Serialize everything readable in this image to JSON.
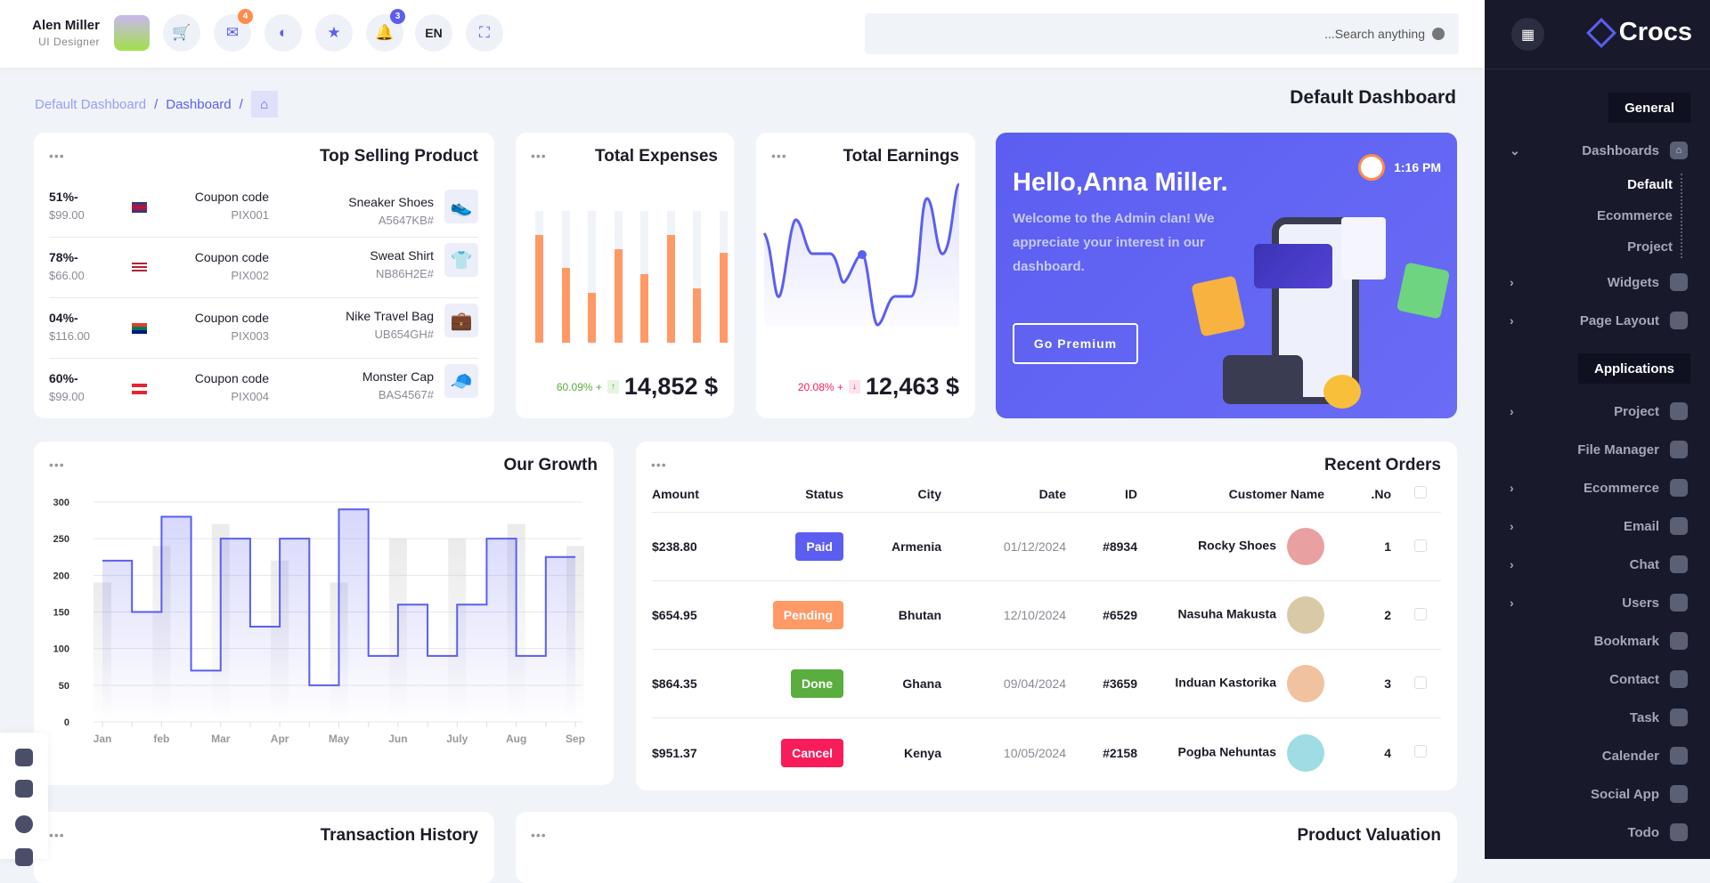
{
  "header": {
    "user_name": "Alen Miller",
    "user_role": "UI Designer",
    "mail_badge": "4",
    "notif_badge": "3",
    "language": "EN",
    "search_placeholder": "...Search anything"
  },
  "breadcrumb": [
    "Default Dashboard",
    "Dashboard"
  ],
  "page_title": "Default Dashboard",
  "sidebar": {
    "brand": "Crocs",
    "general_label": "General",
    "applications_label": "Applications",
    "dashboards": "Dashboards",
    "sub": [
      "Default",
      "Ecommerce",
      "Project"
    ],
    "general_items": [
      {
        "label": "Widgets",
        "icon": "pie-icon"
      },
      {
        "label": "Page Layout",
        "icon": "layout-icon"
      }
    ],
    "app_items": [
      {
        "label": "Project",
        "icon": "info-icon",
        "chev": true
      },
      {
        "label": "File Manager",
        "icon": "file-icon",
        "chev": false
      },
      {
        "label": "Ecommerce",
        "icon": "bag-icon",
        "chev": true
      },
      {
        "label": "Email",
        "icon": "mail-icon",
        "chev": true
      },
      {
        "label": "Chat",
        "icon": "chat-icon",
        "chev": true
      },
      {
        "label": "Users",
        "icon": "user-icon",
        "chev": true
      },
      {
        "label": "Bookmark",
        "icon": "bookmark-icon",
        "chev": false
      },
      {
        "label": "Contact",
        "icon": "phone-icon",
        "chev": false
      },
      {
        "label": "Task",
        "icon": "check-icon",
        "chev": false
      },
      {
        "label": "Calender",
        "icon": "calendar-icon",
        "chev": false
      },
      {
        "label": "Social App",
        "icon": "camera-icon",
        "chev": false
      },
      {
        "label": "Todo",
        "icon": "edit-icon",
        "chev": false
      }
    ]
  },
  "top_selling": {
    "title": "Top Selling Product",
    "rows": [
      {
        "discount": "51%-",
        "price": "$99.00",
        "coupon_label": "Coupon code",
        "coupon": "PIX001",
        "product": "Sneaker Shoes",
        "sku": "A5647KB#",
        "flag": "uk",
        "img": "👟"
      },
      {
        "discount": "78%-",
        "price": "$66.00",
        "coupon_label": "Coupon code",
        "coupon": "PIX002",
        "product": "Sweat Shirt",
        "sku": "NB86H2E#",
        "flag": "us",
        "img": "👕"
      },
      {
        "discount": "04%-",
        "price": "$116.00",
        "coupon_label": "Coupon code",
        "coupon": "PIX003",
        "product": "Nike Travel Bag",
        "sku": "UB654GH#",
        "flag": "za",
        "img": "💼"
      },
      {
        "discount": "60%-",
        "price": "$99.00",
        "coupon_label": "Coupon code",
        "coupon": "PIX004",
        "product": "Monster Cap",
        "sku": "BAS4567#",
        "flag": "at",
        "img": "🧢"
      }
    ]
  },
  "expenses": {
    "title": "Total Expenses",
    "change": "60.09% +",
    "value": "14,852 $",
    "bars": [
      0.82,
      0.57,
      0.38,
      0.71,
      0.52,
      0.82,
      0.41,
      0.68
    ],
    "color": "#ff9966"
  },
  "earnings": {
    "title": "Total Earnings",
    "change": "20.08% +",
    "value": "12,463 $",
    "color": "#5b5ef0"
  },
  "banner": {
    "time": "1:16 PM",
    "greeting": "Hello,Anna Miller.",
    "text": "Welcome to the Admin clan! We appreciate your interest in our dashboard.",
    "button": "Go Premium"
  },
  "chart_data": {
    "type": "line",
    "title": "Our Growth",
    "categories": [
      "Jan",
      "feb",
      "Mar",
      "Apr",
      "May",
      "Jun",
      "July",
      "Aug",
      "Sep"
    ],
    "step_series": [
      220,
      150,
      280,
      70,
      250,
      130,
      250,
      50,
      290,
      90,
      160,
      90,
      160,
      250,
      90,
      225
    ],
    "bar_series": [
      190,
      240,
      270,
      220,
      190,
      250,
      250,
      270,
      240
    ],
    "yticks": [
      0,
      50,
      100,
      150,
      200,
      250,
      300
    ],
    "ylim": [
      0,
      300
    ]
  },
  "orders": {
    "title": "Recent Orders",
    "columns": [
      "Amount",
      "Status",
      "City",
      "Date",
      "ID",
      "Customer Name",
      ".No"
    ],
    "rows": [
      {
        "amount": "$238.80",
        "status": "Paid",
        "status_color": "#5b5ef0",
        "city": "Armenia",
        "date": "01/12/2024",
        "id": "#8934",
        "customer": "Rocky Shoes",
        "no": "1",
        "av": "#e8a0a0"
      },
      {
        "amount": "$654.95",
        "status": "Pending",
        "status_color": "#ff9966",
        "city": "Bhutan",
        "date": "12/10/2024",
        "id": "#6529",
        "customer": "Nasuha Makusta",
        "no": "2",
        "av": "#d9c9a6"
      },
      {
        "amount": "$864.35",
        "status": "Done",
        "status_color": "#5aad3f",
        "city": "Ghana",
        "date": "09/04/2024",
        "id": "#3659",
        "customer": "Induan Kastorika",
        "no": "3",
        "av": "#f0c2a0"
      },
      {
        "amount": "$951.37",
        "status": "Cancel",
        "status_color": "#f81d5a",
        "city": "Kenya",
        "date": "10/05/2024",
        "id": "#2158",
        "customer": "Pogba Nehuntas",
        "no": "4",
        "av": "#9fdce3"
      }
    ]
  },
  "transaction": {
    "title": "Transaction History"
  },
  "valuation": {
    "title": "Product Valuation"
  }
}
